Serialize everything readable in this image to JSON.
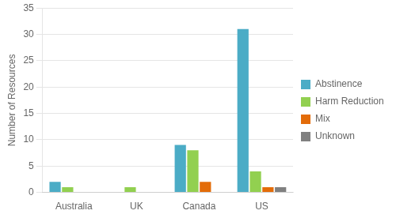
{
  "chart_data": {
    "type": "bar",
    "categories": [
      "Australia",
      "UK",
      "Canada",
      "US"
    ],
    "series": [
      {
        "name": "Abstinence",
        "color": "#4BACC6",
        "values": [
          2,
          0,
          9,
          31
        ]
      },
      {
        "name": "Harm Reduction",
        "color": "#92D050",
        "values": [
          1,
          1,
          8,
          4
        ]
      },
      {
        "name": "Mix",
        "color": "#E36C09",
        "values": [
          0,
          0,
          2,
          1
        ]
      },
      {
        "name": "Unknown",
        "color": "#808080",
        "values": [
          0,
          0,
          0,
          1
        ]
      }
    ],
    "y_label": "Number of Resources",
    "ylim": [
      0,
      35
    ],
    "yticks": [
      0,
      5,
      10,
      15,
      20,
      25,
      30,
      35
    ],
    "grid": true,
    "legend": "right"
  }
}
